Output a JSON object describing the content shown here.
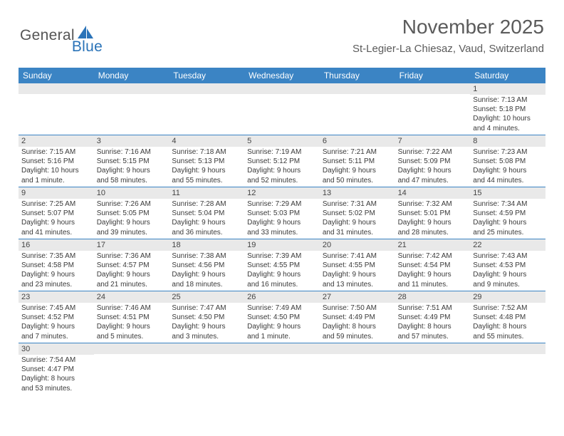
{
  "logo": {
    "part1": "General",
    "part2": "Blue"
  },
  "title": "November 2025",
  "location": "St-Legier-La Chiesaz, Vaud, Switzerland",
  "colors": {
    "header_bg": "#3b84c4",
    "daynum_bg": "#e9e9e9",
    "week_border": "#3b84c4",
    "logo_gray": "#555555",
    "logo_blue": "#2a73b8",
    "text_gray": "#5b5b5b"
  },
  "weekdays": [
    "Sunday",
    "Monday",
    "Tuesday",
    "Wednesday",
    "Thursday",
    "Friday",
    "Saturday"
  ],
  "weeks": [
    [
      {
        "day": "",
        "lines": []
      },
      {
        "day": "",
        "lines": []
      },
      {
        "day": "",
        "lines": []
      },
      {
        "day": "",
        "lines": []
      },
      {
        "day": "",
        "lines": []
      },
      {
        "day": "",
        "lines": []
      },
      {
        "day": "1",
        "lines": [
          "Sunrise: 7:13 AM",
          "Sunset: 5:18 PM",
          "Daylight: 10 hours",
          "and 4 minutes."
        ]
      }
    ],
    [
      {
        "day": "2",
        "lines": [
          "Sunrise: 7:15 AM",
          "Sunset: 5:16 PM",
          "Daylight: 10 hours",
          "and 1 minute."
        ]
      },
      {
        "day": "3",
        "lines": [
          "Sunrise: 7:16 AM",
          "Sunset: 5:15 PM",
          "Daylight: 9 hours",
          "and 58 minutes."
        ]
      },
      {
        "day": "4",
        "lines": [
          "Sunrise: 7:18 AM",
          "Sunset: 5:13 PM",
          "Daylight: 9 hours",
          "and 55 minutes."
        ]
      },
      {
        "day": "5",
        "lines": [
          "Sunrise: 7:19 AM",
          "Sunset: 5:12 PM",
          "Daylight: 9 hours",
          "and 52 minutes."
        ]
      },
      {
        "day": "6",
        "lines": [
          "Sunrise: 7:21 AM",
          "Sunset: 5:11 PM",
          "Daylight: 9 hours",
          "and 50 minutes."
        ]
      },
      {
        "day": "7",
        "lines": [
          "Sunrise: 7:22 AM",
          "Sunset: 5:09 PM",
          "Daylight: 9 hours",
          "and 47 minutes."
        ]
      },
      {
        "day": "8",
        "lines": [
          "Sunrise: 7:23 AM",
          "Sunset: 5:08 PM",
          "Daylight: 9 hours",
          "and 44 minutes."
        ]
      }
    ],
    [
      {
        "day": "9",
        "lines": [
          "Sunrise: 7:25 AM",
          "Sunset: 5:07 PM",
          "Daylight: 9 hours",
          "and 41 minutes."
        ]
      },
      {
        "day": "10",
        "lines": [
          "Sunrise: 7:26 AM",
          "Sunset: 5:05 PM",
          "Daylight: 9 hours",
          "and 39 minutes."
        ]
      },
      {
        "day": "11",
        "lines": [
          "Sunrise: 7:28 AM",
          "Sunset: 5:04 PM",
          "Daylight: 9 hours",
          "and 36 minutes."
        ]
      },
      {
        "day": "12",
        "lines": [
          "Sunrise: 7:29 AM",
          "Sunset: 5:03 PM",
          "Daylight: 9 hours",
          "and 33 minutes."
        ]
      },
      {
        "day": "13",
        "lines": [
          "Sunrise: 7:31 AM",
          "Sunset: 5:02 PM",
          "Daylight: 9 hours",
          "and 31 minutes."
        ]
      },
      {
        "day": "14",
        "lines": [
          "Sunrise: 7:32 AM",
          "Sunset: 5:01 PM",
          "Daylight: 9 hours",
          "and 28 minutes."
        ]
      },
      {
        "day": "15",
        "lines": [
          "Sunrise: 7:34 AM",
          "Sunset: 4:59 PM",
          "Daylight: 9 hours",
          "and 25 minutes."
        ]
      }
    ],
    [
      {
        "day": "16",
        "lines": [
          "Sunrise: 7:35 AM",
          "Sunset: 4:58 PM",
          "Daylight: 9 hours",
          "and 23 minutes."
        ]
      },
      {
        "day": "17",
        "lines": [
          "Sunrise: 7:36 AM",
          "Sunset: 4:57 PM",
          "Daylight: 9 hours",
          "and 21 minutes."
        ]
      },
      {
        "day": "18",
        "lines": [
          "Sunrise: 7:38 AM",
          "Sunset: 4:56 PM",
          "Daylight: 9 hours",
          "and 18 minutes."
        ]
      },
      {
        "day": "19",
        "lines": [
          "Sunrise: 7:39 AM",
          "Sunset: 4:55 PM",
          "Daylight: 9 hours",
          "and 16 minutes."
        ]
      },
      {
        "day": "20",
        "lines": [
          "Sunrise: 7:41 AM",
          "Sunset: 4:55 PM",
          "Daylight: 9 hours",
          "and 13 minutes."
        ]
      },
      {
        "day": "21",
        "lines": [
          "Sunrise: 7:42 AM",
          "Sunset: 4:54 PM",
          "Daylight: 9 hours",
          "and 11 minutes."
        ]
      },
      {
        "day": "22",
        "lines": [
          "Sunrise: 7:43 AM",
          "Sunset: 4:53 PM",
          "Daylight: 9 hours",
          "and 9 minutes."
        ]
      }
    ],
    [
      {
        "day": "23",
        "lines": [
          "Sunrise: 7:45 AM",
          "Sunset: 4:52 PM",
          "Daylight: 9 hours",
          "and 7 minutes."
        ]
      },
      {
        "day": "24",
        "lines": [
          "Sunrise: 7:46 AM",
          "Sunset: 4:51 PM",
          "Daylight: 9 hours",
          "and 5 minutes."
        ]
      },
      {
        "day": "25",
        "lines": [
          "Sunrise: 7:47 AM",
          "Sunset: 4:50 PM",
          "Daylight: 9 hours",
          "and 3 minutes."
        ]
      },
      {
        "day": "26",
        "lines": [
          "Sunrise: 7:49 AM",
          "Sunset: 4:50 PM",
          "Daylight: 9 hours",
          "and 1 minute."
        ]
      },
      {
        "day": "27",
        "lines": [
          "Sunrise: 7:50 AM",
          "Sunset: 4:49 PM",
          "Daylight: 8 hours",
          "and 59 minutes."
        ]
      },
      {
        "day": "28",
        "lines": [
          "Sunrise: 7:51 AM",
          "Sunset: 4:49 PM",
          "Daylight: 8 hours",
          "and 57 minutes."
        ]
      },
      {
        "day": "29",
        "lines": [
          "Sunrise: 7:52 AM",
          "Sunset: 4:48 PM",
          "Daylight: 8 hours",
          "and 55 minutes."
        ]
      }
    ],
    [
      {
        "day": "30",
        "lines": [
          "Sunrise: 7:54 AM",
          "Sunset: 4:47 PM",
          "Daylight: 8 hours",
          "and 53 minutes."
        ]
      },
      {
        "day": "",
        "lines": []
      },
      {
        "day": "",
        "lines": []
      },
      {
        "day": "",
        "lines": []
      },
      {
        "day": "",
        "lines": []
      },
      {
        "day": "",
        "lines": []
      },
      {
        "day": "",
        "lines": []
      }
    ]
  ]
}
